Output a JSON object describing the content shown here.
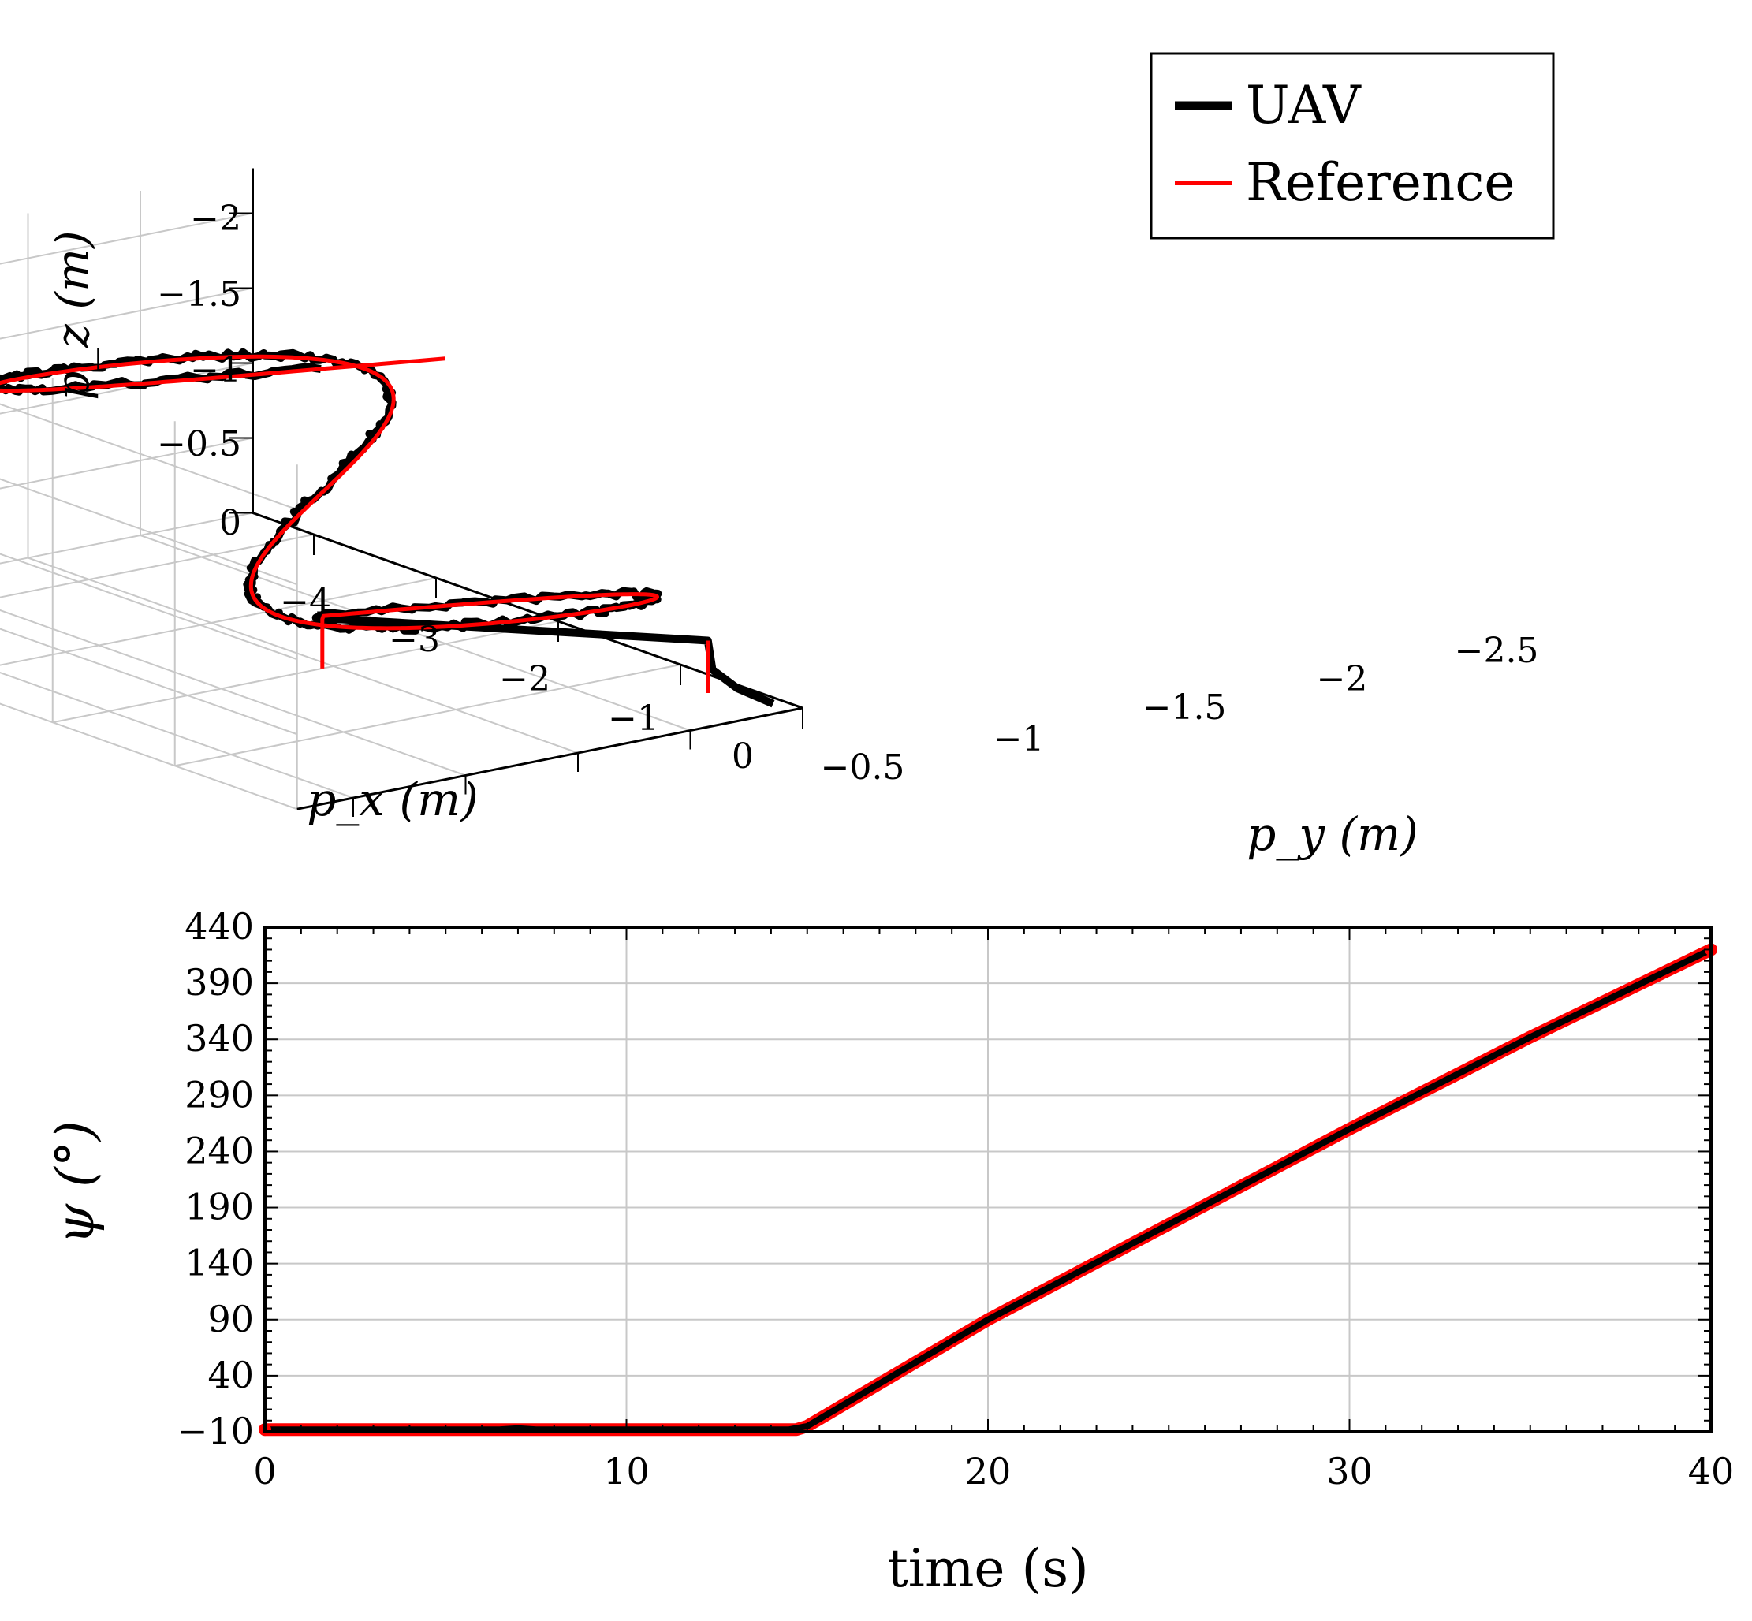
{
  "chart_data": [
    {
      "type": "line3d",
      "title": "",
      "xlabel": "p_x (m)",
      "ylabel": "p_y (m)",
      "zlabel": "p_z (m)",
      "x_ticks": [
        "−4",
        "−3",
        "−2",
        "−1",
        "0"
      ],
      "y_ticks": [
        "−0.5",
        "−1",
        "−1.5",
        "−2",
        "−2.5"
      ],
      "z_ticks": [
        "0",
        "−0.5",
        "−1",
        "−1.5",
        "−2"
      ],
      "xlim": [
        -4.5,
        0
      ],
      "ylim": [
        -0.5,
        -2.75
      ],
      "zlim": [
        0,
        -2.3
      ],
      "grid": true,
      "legend": {
        "position": "top-right",
        "entries": [
          {
            "name": "UAV",
            "color": "#000000"
          },
          {
            "name": "Reference",
            "color": "#ff0000"
          }
        ]
      },
      "series": [
        {
          "name": "Reference",
          "color": "#ff0000",
          "description": "two-level figure-eight helix, climbing from near 0 m to about -2 m"
        },
        {
          "name": "UAV",
          "color": "#000000",
          "description": "tracked trajectory closely following the reference"
        }
      ]
    },
    {
      "type": "line",
      "title": "",
      "xlabel": "time (s)",
      "ylabel": "ψ (°)",
      "xlim": [
        0,
        40
      ],
      "ylim": [
        -10,
        440
      ],
      "x_ticks": [
        0,
        10,
        20,
        30,
        40
      ],
      "y_ticks": [
        -10,
        40,
        90,
        140,
        190,
        240,
        290,
        340,
        390,
        440
      ],
      "x_tick_labels": [
        "0",
        "10",
        "20",
        "30",
        "40"
      ],
      "y_tick_labels": [
        "−10",
        "40",
        "90",
        "140",
        "190",
        "240",
        "290",
        "340",
        "390",
        "440"
      ],
      "grid": true,
      "series": [
        {
          "name": "UAV",
          "color": "#000000",
          "x": [
            0,
            6.5,
            7,
            7.5,
            14.5,
            15,
            20,
            25,
            30,
            35,
            40
          ],
          "y": [
            -8,
            -8,
            -7,
            -8,
            -8,
            -5,
            90,
            175,
            260,
            342,
            420
          ]
        },
        {
          "name": "Reference",
          "color": "#ff0000",
          "x": [
            0,
            14.7,
            15,
            20,
            25,
            30,
            35,
            40
          ],
          "y": [
            -8,
            -8,
            -5,
            90,
            175,
            260,
            342,
            420
          ]
        }
      ]
    }
  ]
}
